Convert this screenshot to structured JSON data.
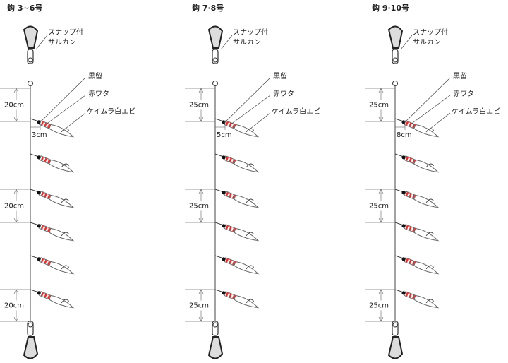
{
  "panels": [
    {
      "title": "鈎 3~6号",
      "snap": [
        "スナップ付",
        "サルカン"
      ],
      "parts": [
        "黒留",
        "赤ワタ",
        "ケイムラ白エビ"
      ],
      "spacings": [
        "20cm",
        "20cm",
        "20cm"
      ],
      "branch": "3cm"
    },
    {
      "title": "鈎 7·8号",
      "snap": [
        "スナップ付",
        "サルカン"
      ],
      "parts": [
        "黒留",
        "赤ワタ",
        "ケイムラ白エビ"
      ],
      "spacings": [
        "25cm",
        "25cm",
        "25cm"
      ],
      "branch": "5cm"
    },
    {
      "title": "鈎 9·10号",
      "snap": [
        "スナップ付",
        "サルカン"
      ],
      "parts": [
        "黒留",
        "赤ワタ",
        "ケイムラ白エビ"
      ],
      "spacings": [
        "25cm",
        "25cm",
        "25cm"
      ],
      "branch": "8cm"
    }
  ]
}
